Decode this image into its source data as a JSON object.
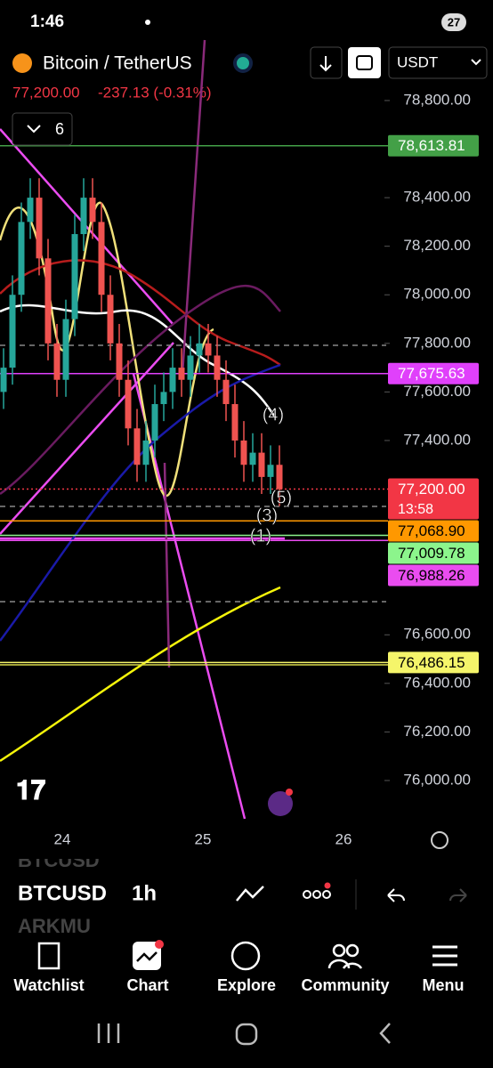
{
  "status_bar": {
    "time": "1:46",
    "battery": "27"
  },
  "header": {
    "symbol": "Bitcoin / TetherUS",
    "currency": "USDT",
    "last_price": "77,200.00",
    "change": "-237.13 (-0.31%)",
    "indicator_count": "6"
  },
  "chart": {
    "ylim": [
      75824,
      79049
    ],
    "yticks": [
      {
        "value": 78800,
        "label": "78,800.00"
      },
      {
        "value": 78400,
        "label": "78,400.00"
      },
      {
        "value": 78200,
        "label": "78,200.00"
      },
      {
        "value": 78000,
        "label": "78,000.00"
      },
      {
        "value": 77800,
        "label": "77,800.00"
      },
      {
        "value": 77600,
        "label": "77,600.00"
      },
      {
        "value": 77400,
        "label": "77,400.00"
      },
      {
        "value": 76600,
        "label": "76,600.00"
      },
      {
        "value": 76400,
        "label": "76,400.00"
      },
      {
        "value": 76200,
        "label": "76,200.00"
      },
      {
        "value": 76000,
        "label": "76,000.00"
      }
    ],
    "candles": [
      [
        77600,
        77780,
        77530,
        77700
      ],
      [
        77700,
        78080,
        77630,
        78000
      ],
      [
        78000,
        78380,
        77930,
        78300
      ],
      [
        78300,
        78480,
        78230,
        78400
      ],
      [
        78400,
        78480,
        78080,
        78150
      ],
      [
        78150,
        78230,
        77730,
        77800
      ],
      [
        77800,
        77880,
        77580,
        77650
      ],
      [
        77650,
        77980,
        77580,
        77900
      ],
      [
        77900,
        78330,
        77830,
        78250
      ],
      [
        78250,
        78480,
        78180,
        78400
      ],
      [
        78400,
        78480,
        78230,
        78300
      ],
      [
        78300,
        78380,
        77930,
        78000
      ],
      [
        78000,
        78080,
        77730,
        77800
      ],
      [
        77800,
        77880,
        77580,
        77650
      ],
      [
        77650,
        77730,
        77380,
        77450
      ],
      [
        77450,
        77530,
        77230,
        77300
      ],
      [
        77300,
        77480,
        77230,
        77400
      ],
      [
        77400,
        77630,
        77330,
        77550
      ],
      [
        77550,
        77680,
        77480,
        77600
      ],
      [
        77600,
        77780,
        77530,
        77700
      ],
      [
        77700,
        77780,
        77580,
        77650
      ],
      [
        77650,
        77830,
        77580,
        77750
      ],
      [
        77750,
        77880,
        77680,
        77800
      ],
      [
        77800,
        77880,
        77680,
        77750
      ],
      [
        77750,
        77830,
        77580,
        77650
      ],
      [
        77650,
        77730,
        77480,
        77550
      ],
      [
        77550,
        77630,
        77330,
        77400
      ],
      [
        77400,
        77480,
        77230,
        77300
      ],
      [
        77300,
        77430,
        77230,
        77350
      ],
      [
        77350,
        77430,
        77180,
        77250
      ],
      [
        77250,
        77380,
        77180,
        77300
      ],
      [
        77300,
        77380,
        77130,
        77200
      ]
    ],
    "up_color": "#26a69a",
    "down_color": "#ef5350",
    "price_tags": [
      {
        "value": 78613.81,
        "label": "78,613.81",
        "color": "#43a047",
        "text_color": "#ffffff"
      },
      {
        "value": 77675.63,
        "label": "77,675.63",
        "color": "#e040fb",
        "text_color": "#ffffff"
      },
      {
        "value": 77200,
        "label": "77,200.00",
        "color": "#f23645",
        "text_color": "#ffffff"
      },
      {
        "value": 77068.9,
        "label": "77,068.90",
        "color": "#ff9800",
        "text_color": "#000000"
      },
      {
        "value": 77009.78,
        "label": "77,009.78",
        "color": "#8cf58c",
        "text_color": "#000000"
      },
      {
        "value": 76988.26,
        "label": "76,988.26",
        "color": "#ea4cf0",
        "text_color": "#000000"
      },
      {
        "value": 76486.15,
        "label": "76,486.15",
        "color": "#f5f56a",
        "text_color": "#000000"
      }
    ],
    "countdown": "13:58",
    "wave_labels": [
      "(4)",
      "(5)",
      "(3)",
      "(1)"
    ],
    "x_labels": [
      "24",
      "25",
      "26"
    ]
  },
  "toolbar": {
    "prev_symbol": "BTCUSD",
    "symbol": "BTCUSD",
    "interval": "1h",
    "next_symbol": "ARKMU"
  },
  "nav": [
    "Watchlist",
    "Chart",
    "Explore",
    "Community",
    "Menu"
  ]
}
